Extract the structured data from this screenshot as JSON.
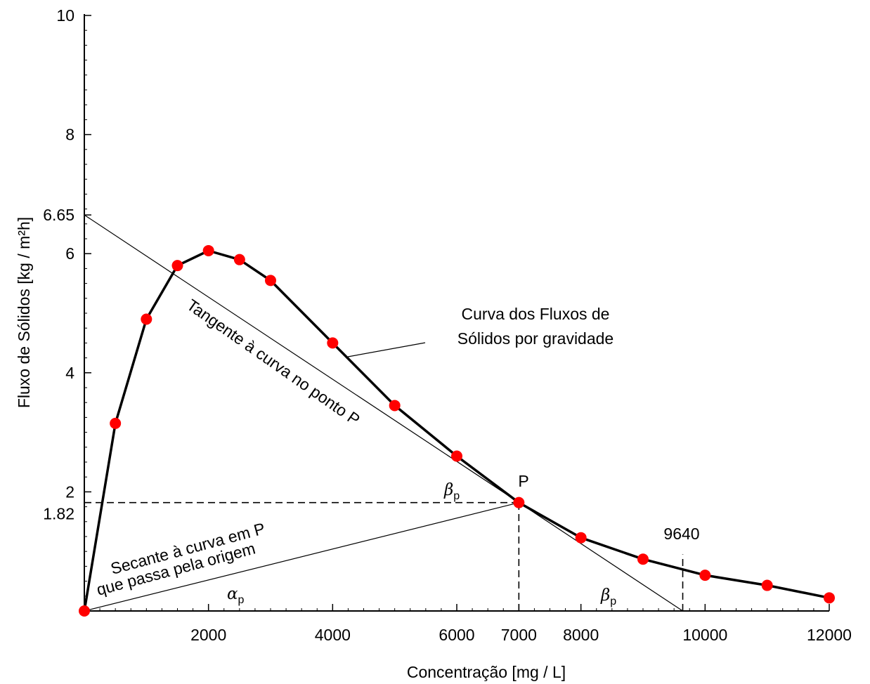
{
  "chart_data": {
    "type": "line",
    "title": "",
    "xlabel": "Concentração [mg / L]",
    "ylabel": "Fluxo de Sólidos [kg / m²h]",
    "xlim": [
      0,
      12000
    ],
    "ylim": [
      0,
      10
    ],
    "x_ticks": [
      2000,
      4000,
      6000,
      7000,
      8000,
      10000,
      12000
    ],
    "x_tick_labels": [
      "2000",
      "4000",
      "6000",
      "7000",
      "8000",
      "10000",
      "12000"
    ],
    "y_ticks": [
      1.82,
      2,
      4,
      6,
      6.65,
      8,
      10
    ],
    "y_tick_labels": [
      "1.82",
      "2",
      "4",
      "6",
      "6.65",
      "8",
      "10"
    ],
    "grid": false,
    "series": [
      {
        "name": "Curva dos Fluxos de Sólidos por gravidade",
        "x": [
          0,
          500,
          1000,
          1500,
          2000,
          2500,
          3000,
          4000,
          5000,
          6000,
          7000,
          8000,
          9000,
          10000,
          11000,
          12000
        ],
        "y": [
          0,
          3.15,
          4.9,
          5.8,
          6.05,
          5.9,
          5.55,
          4.5,
          3.45,
          2.6,
          1.82,
          1.23,
          0.87,
          0.6,
          0.43,
          0.22
        ],
        "color": "#000000",
        "marker_color": "#ff0000"
      }
    ],
    "lines": [
      {
        "name": "Tangente à curva no ponto P",
        "x": [
          0,
          9640
        ],
        "y": [
          6.65,
          0
        ]
      },
      {
        "name": "Secante à curva em P que passa pela origem",
        "x": [
          0,
          7000
        ],
        "y": [
          0,
          1.82
        ]
      }
    ],
    "guides": [
      {
        "x": [
          0,
          7000
        ],
        "y": [
          1.82,
          1.82
        ]
      },
      {
        "x": [
          7000,
          7000
        ],
        "y": [
          0,
          1.82
        ]
      },
      {
        "x": [
          9640,
          9640
        ],
        "y": [
          0,
          0.95
        ]
      }
    ],
    "point_P": {
      "x": 7000,
      "y": 1.82,
      "label": "P"
    },
    "annotations": {
      "curve_label_line1": "Curva dos Fluxos de",
      "curve_label_line2": "Sólidos por gravidade",
      "tangent_label": "Tangente à curva no ponto P",
      "secant_label_line1": "Secante à curva em P",
      "secant_label_line2": "que passa pela origem",
      "intercept_label": "9640",
      "beta_symbol": "β",
      "alpha_symbol": "α",
      "subscript": "p"
    }
  }
}
